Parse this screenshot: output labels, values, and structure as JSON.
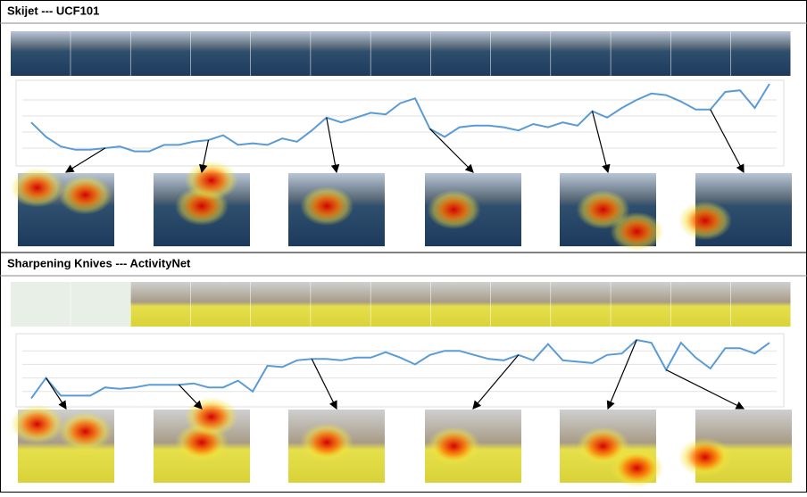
{
  "panels": [
    {
      "title": "Skijet --- UCF101",
      "chart_data": {
        "type": "line",
        "color": "#5b9bd5",
        "ylim": [
          0,
          5
        ],
        "yticks": [
          1,
          2,
          3,
          4
        ],
        "grid": true,
        "values": [
          2.6,
          1.7,
          1.1,
          0.9,
          0.9,
          1.0,
          1.1,
          0.8,
          0.8,
          1.2,
          1.2,
          1.4,
          1.5,
          1.8,
          1.2,
          1.3,
          1.2,
          1.6,
          1.4,
          2.1,
          2.9,
          2.6,
          2.9,
          3.2,
          3.1,
          3.8,
          4.1,
          2.2,
          1.7,
          2.3,
          2.4,
          2.4,
          2.3,
          2.1,
          2.5,
          2.3,
          2.6,
          2.4,
          3.3,
          2.9,
          3.5,
          4.0,
          4.4,
          4.3,
          3.9,
          3.4,
          3.4,
          4.5,
          4.6,
          3.5,
          5.0
        ]
      }
    },
    {
      "title": "Sharpening Knives --- ActivityNet",
      "chart_data": {
        "type": "line",
        "color": "#5b9bd5",
        "ylim": [
          0,
          5
        ],
        "yticks": [
          1,
          2,
          3,
          4
        ],
        "grid": true,
        "values": [
          0.5,
          2.0,
          0.7,
          0.7,
          0.7,
          1.3,
          1.2,
          1.3,
          1.5,
          1.5,
          1.5,
          1.6,
          1.3,
          1.3,
          1.8,
          1.0,
          2.9,
          2.8,
          3.3,
          3.4,
          3.4,
          3.3,
          3.5,
          3.5,
          3.9,
          3.5,
          3.0,
          3.7,
          4.0,
          4.0,
          3.7,
          3.4,
          3.3,
          3.7,
          3.3,
          4.5,
          3.3,
          3.2,
          3.1,
          3.7,
          3.8,
          4.8,
          4.6,
          2.6,
          4.6,
          3.5,
          2.7,
          4.2,
          4.2,
          3.8,
          4.6
        ]
      }
    }
  ]
}
